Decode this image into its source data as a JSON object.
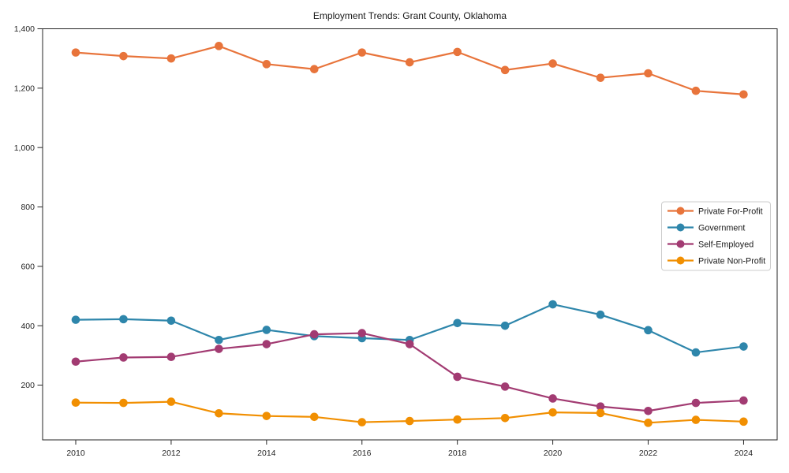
{
  "title": "Employment Trends: Grant County, Oklahoma",
  "chart_data": {
    "type": "line",
    "title": "Employment Trends: Grant County, Oklahoma",
    "xlabel": "",
    "ylabel": "",
    "grid": false,
    "legend_position": "center-right",
    "x": [
      2010,
      2011,
      2012,
      2013,
      2014,
      2015,
      2016,
      2017,
      2018,
      2019,
      2020,
      2021,
      2022,
      2023,
      2024
    ],
    "x_tick_labels": [
      "2010",
      "2012",
      "2014",
      "2016",
      "2018",
      "2020",
      "2022",
      "2024"
    ],
    "y_ticks": [
      200,
      400,
      600,
      800,
      1000,
      1200,
      1400
    ],
    "y_tick_labels": [
      "200",
      "400",
      "600",
      "800",
      "1,000",
      "1,200",
      "1,400"
    ],
    "ylim": [
      15,
      1400
    ],
    "series": [
      {
        "name": "Government",
        "color": "#2E86AB",
        "values": [
          420,
          422,
          417,
          352,
          386,
          365,
          358,
          352,
          409,
          400,
          472,
          437,
          385,
          310,
          330
        ]
      },
      {
        "name": "Self-Employed",
        "color": "#A23B72",
        "values": [
          279,
          293,
          295,
          322,
          338,
          371,
          375,
          338,
          228,
          195,
          155,
          128,
          113,
          140,
          148
        ]
      },
      {
        "name": "Private Non-Profit",
        "color": "#F18F01",
        "values": [
          141,
          140,
          144,
          105,
          96,
          93,
          75,
          79,
          84,
          89,
          108,
          106,
          73,
          83,
          77
        ]
      },
      {
        "name": "Private For-Profit",
        "color": "#E8743B",
        "values": [
          1320,
          1308,
          1300,
          1342,
          1281,
          1264,
          1320,
          1287,
          1322,
          1261,
          1283,
          1235,
          1250,
          1191,
          1179
        ]
      }
    ],
    "legend_order": [
      "Private For-Profit",
      "Government",
      "Self-Employed",
      "Private Non-Profit"
    ]
  }
}
